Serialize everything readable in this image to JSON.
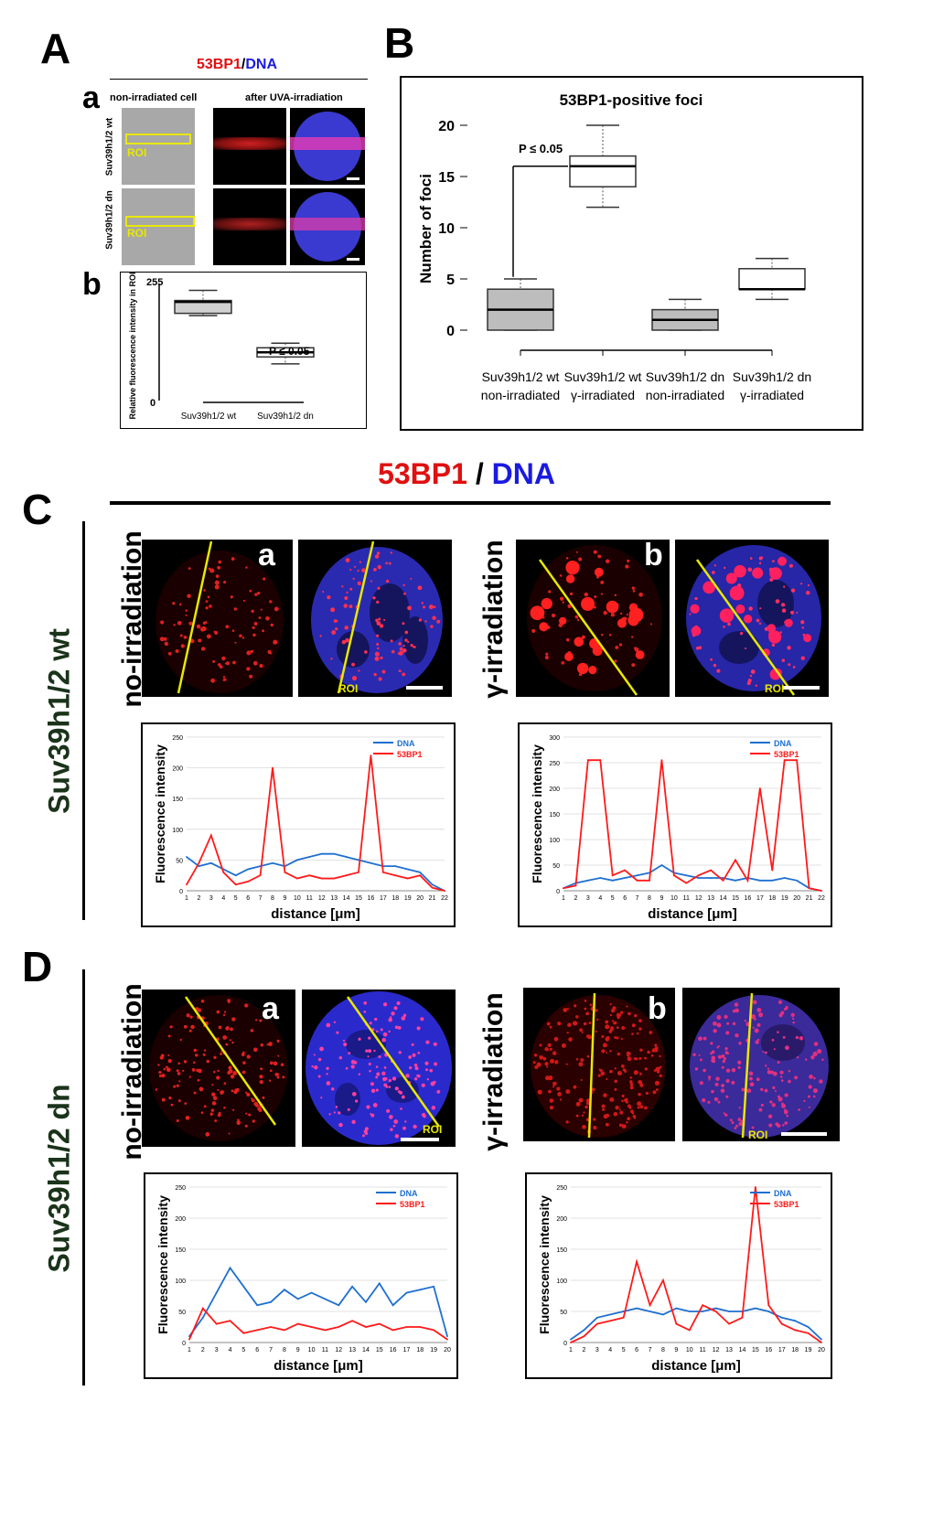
{
  "panel_A": {
    "letter": "A",
    "title_red": "53BP1",
    "title_sep": "/",
    "title_blue": "DNA",
    "sub_a": "a",
    "sub_b": "b",
    "col1": "non-irradiated cell",
    "col2": "after UVA-irradiation",
    "row1": "Suv39h1/2 wt",
    "row2": "Suv39h1/2 dn",
    "roi": "ROI",
    "boxplot": {
      "ylabel": "Relative fluorescence intensity in ROI",
      "y_top": "255",
      "y_bottom": "0",
      "pval": "P ≤ 0.05",
      "categories": [
        "Suv39h1/2 wt",
        "Suv39h1/2 dn"
      ]
    }
  },
  "panel_B": {
    "letter": "B",
    "title": "53BP1-positive foci",
    "ylabel": "Number of foci",
    "pval": "P ≤ 0.05",
    "yticks": [
      "0",
      "5",
      "10",
      "15",
      "20"
    ],
    "categories": [
      [
        "Suv39h1/2 wt",
        "non-irradiated"
      ],
      [
        "Suv39h1/2 wt",
        "γ-irradiated"
      ],
      [
        "Suv39h1/2 dn",
        "non-irradiated"
      ],
      [
        "Suv39h1/2 dn",
        "γ-irradiated"
      ]
    ]
  },
  "panel_C": {
    "letter": "C",
    "header_red": "53BP1",
    "header_sep": " / ",
    "header_blue": "DNA",
    "side": "Suv39h1/2 wt",
    "left_label": "no-irradiation",
    "right_label": "γ-irradiation",
    "img_a": "a",
    "img_b": "b",
    "roi": "ROI"
  },
  "panel_D": {
    "letter": "D",
    "side": "Suv39h1/2 dn",
    "left_label": "no-irradiation",
    "right_label": "γ-irradiation",
    "img_a": "a",
    "img_b": "b",
    "roi": "ROI"
  },
  "plot_common": {
    "ylabel": "Fluorescence intensity",
    "xlabel": "distance [μm]",
    "legend": [
      "DNA",
      "53BP1"
    ]
  },
  "colors": {
    "dna": "#1f6fd1",
    "bp1": "#ff1a1a",
    "roi": "#e8e800",
    "side_text": "#1a331a"
  },
  "chart_data": [
    {
      "type": "box",
      "title": "",
      "ylabel": "Relative fluorescence intensity in ROI",
      "ylim": [
        0,
        255
      ],
      "categories": [
        "Suv39h1/2 wt",
        "Suv39h1/2 dn"
      ],
      "series": [
        {
          "category": "Suv39h1/2 wt",
          "min": 185,
          "q1": 190,
          "median": 215,
          "q3": 218,
          "max": 240
        },
        {
          "category": "Suv39h1/2 dn",
          "min": 80,
          "q1": 95,
          "median": 105,
          "q3": 115,
          "max": 125
        }
      ]
    },
    {
      "type": "box",
      "title": "53BP1-positive foci",
      "ylabel": "Number of foci",
      "ylim": [
        0,
        20
      ],
      "categories": [
        "Suv39h1/2 wt non-irradiated",
        "Suv39h1/2 wt γ-irradiated",
        "Suv39h1/2 dn non-irradiated",
        "Suv39h1/2 dn γ-irradiated"
      ],
      "series": [
        {
          "min": 0,
          "q1": 0,
          "median": 2,
          "q3": 4,
          "max": 5
        },
        {
          "min": 12,
          "q1": 14,
          "median": 16,
          "q3": 17,
          "max": 20
        },
        {
          "min": 0,
          "q1": 0,
          "median": 1,
          "q3": 2,
          "max": 3
        },
        {
          "min": 3,
          "q1": 4,
          "median": 4,
          "q3": 6,
          "max": 7
        }
      ]
    },
    {
      "type": "line",
      "panel": "C-a",
      "xlabel": "distance [μm]",
      "ylabel": "Fluorescence intensity",
      "ylim": [
        0,
        250
      ],
      "xlim": [
        1,
        22
      ],
      "yticks": [
        0,
        50,
        100,
        150,
        200,
        250
      ],
      "x": [
        1,
        2,
        3,
        4,
        5,
        6,
        7,
        8,
        9,
        10,
        11,
        12,
        13,
        14,
        15,
        16,
        17,
        18,
        19,
        20,
        21,
        22
      ],
      "series": [
        {
          "name": "DNA",
          "values": [
            55,
            40,
            45,
            35,
            25,
            35,
            40,
            45,
            40,
            50,
            55,
            60,
            60,
            55,
            50,
            45,
            40,
            40,
            35,
            30,
            10,
            0
          ]
        },
        {
          "name": "53BP1",
          "values": [
            10,
            45,
            90,
            30,
            10,
            15,
            25,
            200,
            30,
            20,
            25,
            20,
            20,
            25,
            30,
            220,
            30,
            25,
            20,
            25,
            5,
            0
          ]
        }
      ]
    },
    {
      "type": "line",
      "panel": "C-b",
      "xlabel": "distance [μm]",
      "ylabel": "Fluorescence intensity",
      "ylim": [
        0,
        300
      ],
      "xlim": [
        1,
        22
      ],
      "yticks": [
        0,
        50,
        100,
        150,
        200,
        250,
        300
      ],
      "x": [
        1,
        2,
        3,
        4,
        5,
        6,
        7,
        8,
        9,
        10,
        11,
        12,
        13,
        14,
        15,
        16,
        17,
        18,
        19,
        20,
        21,
        22
      ],
      "series": [
        {
          "name": "DNA",
          "values": [
            5,
            15,
            20,
            25,
            20,
            25,
            30,
            35,
            50,
            35,
            30,
            25,
            25,
            25,
            20,
            25,
            20,
            20,
            25,
            20,
            5,
            0
          ]
        },
        {
          "name": "53BP1",
          "values": [
            5,
            10,
            255,
            255,
            30,
            40,
            20,
            20,
            255,
            30,
            15,
            30,
            40,
            20,
            60,
            20,
            200,
            40,
            255,
            255,
            5,
            0
          ]
        }
      ]
    },
    {
      "type": "line",
      "panel": "D-a",
      "xlabel": "distance [μm]",
      "ylabel": "Fluorescence intensity",
      "ylim": [
        0,
        250
      ],
      "xlim": [
        1,
        20
      ],
      "yticks": [
        0,
        50,
        100,
        150,
        200,
        250
      ],
      "x": [
        1,
        2,
        3,
        4,
        5,
        6,
        7,
        8,
        9,
        10,
        11,
        12,
        13,
        14,
        15,
        16,
        17,
        18,
        19,
        20
      ],
      "series": [
        {
          "name": "DNA",
          "values": [
            10,
            40,
            80,
            120,
            90,
            60,
            65,
            85,
            70,
            80,
            70,
            60,
            90,
            65,
            95,
            60,
            80,
            85,
            90,
            10
          ]
        },
        {
          "name": "53BP1",
          "values": [
            5,
            55,
            30,
            35,
            15,
            20,
            25,
            20,
            30,
            25,
            20,
            25,
            35,
            25,
            30,
            20,
            25,
            25,
            20,
            5
          ]
        }
      ]
    },
    {
      "type": "line",
      "panel": "D-b",
      "xlabel": "distance [μm]",
      "ylabel": "Fluorescence intensity",
      "ylim": [
        0,
        250
      ],
      "xlim": [
        1,
        20
      ],
      "yticks": [
        0,
        50,
        100,
        150,
        200,
        250
      ],
      "x": [
        1,
        2,
        3,
        4,
        5,
        6,
        7,
        8,
        9,
        10,
        11,
        12,
        13,
        14,
        15,
        16,
        17,
        18,
        19,
        20
      ],
      "series": [
        {
          "name": "DNA",
          "values": [
            5,
            20,
            40,
            45,
            50,
            55,
            50,
            45,
            55,
            50,
            50,
            55,
            50,
            50,
            55,
            50,
            40,
            35,
            25,
            5
          ]
        },
        {
          "name": "53BP1",
          "values": [
            0,
            10,
            30,
            35,
            40,
            130,
            60,
            100,
            30,
            20,
            60,
            50,
            30,
            40,
            250,
            60,
            30,
            20,
            15,
            0
          ]
        }
      ]
    }
  ]
}
